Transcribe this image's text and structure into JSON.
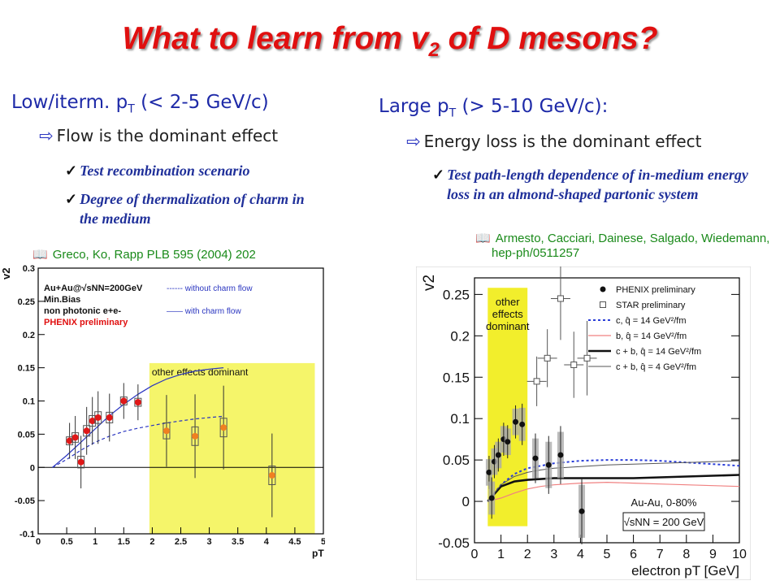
{
  "slide": {
    "title_main": "What to learn from v",
    "title_sub": "2",
    "title_tail": " of D mesons?",
    "left": {
      "header_pre": "Low/iterm. p",
      "header_sub": "T",
      "header_post": " (< 2-5 GeV/c)",
      "bullet": "Flow is the dominant effect",
      "checks": [
        "Test recombination scenario",
        "Degree of thermalization of charm in the medium"
      ],
      "reference": "Greco, Ko, Rapp PLB 595 (2004) 202"
    },
    "right": {
      "header_pre": "Large p",
      "header_sub": "T",
      "header_post": " (> 5-10 GeV/c):",
      "bullet": "Energy loss is the dominant effect",
      "checks": [
        "Test path-length dependence of in-medium energy loss in an almond-shaped partonic system"
      ],
      "reference": "Armesto, Cacciari, Dainese, Salgado, Wiedemann, hep-ph/0511257"
    }
  },
  "chart_data": [
    {
      "type": "scatter",
      "ylabel": "v2",
      "xlabel": "pT",
      "xlim": [
        0,
        5
      ],
      "ylim": [
        -0.1,
        0.3
      ],
      "x_ticks": [
        "0",
        "0.5",
        "1",
        "1.5",
        "2",
        "2.5",
        "3",
        "3.5",
        "4",
        "4.5",
        "5"
      ],
      "y_ticks": [
        "-0.1",
        "-0.05",
        "0",
        "0.05",
        "0.1",
        "0.15",
        "0.2",
        "0.25",
        "0.3"
      ],
      "legend_lines": [
        "Au+Au@√sNN=200GeV",
        "Min.Bias",
        "non photonic e+e-"
      ],
      "legend_phenix": "PHENIX preliminary",
      "curve_labels": [
        "------ without charm flow",
        "—— with charm flow"
      ],
      "band_label": "other effects dominant",
      "band_x": [
        1.95,
        4.85
      ],
      "band_color": "#f5f56a",
      "series": [
        {
          "name": "PHENIX preliminary",
          "x": [
            0.55,
            0.65,
            0.75,
            0.85,
            0.95,
            1.05,
            1.25,
            1.5,
            1.75,
            2.25,
            2.75,
            3.25,
            4.1
          ],
          "y": [
            0.04,
            0.045,
            0.008,
            0.055,
            0.07,
            0.075,
            0.075,
            0.1,
            0.098,
            0.055,
            0.047,
            0.06,
            -0.012
          ],
          "err": [
            0.015,
            0.018,
            0.022,
            0.02,
            0.02,
            0.022,
            0.02,
            0.015,
            0.015,
            0.03,
            0.035,
            0.035,
            0.035
          ]
        }
      ],
      "curves": [
        {
          "name": "with charm flow",
          "style": "solid",
          "x": [
            0.25,
            0.5,
            0.75,
            1.0,
            1.25,
            1.5,
            1.75,
            2.0,
            2.25,
            2.5,
            2.75,
            3.0,
            3.25
          ],
          "y": [
            0,
            0.018,
            0.038,
            0.058,
            0.078,
            0.095,
            0.11,
            0.123,
            0.133,
            0.14,
            0.145,
            0.148,
            0.15
          ]
        },
        {
          "name": "without charm flow",
          "style": "dashed",
          "x": [
            0.25,
            0.5,
            0.75,
            1.0,
            1.25,
            1.5,
            1.75,
            2.0,
            2.25,
            2.5,
            2.75,
            3.0,
            3.25
          ],
          "y": [
            0,
            0.012,
            0.026,
            0.038,
            0.047,
            0.054,
            0.059,
            0.063,
            0.067,
            0.07,
            0.073,
            0.075,
            0.077
          ]
        }
      ]
    },
    {
      "type": "scatter",
      "ylabel": "v2",
      "xlabel": "electron pT [GeV]",
      "xlim": [
        0,
        10
      ],
      "ylim": [
        -0.05,
        0.27
      ],
      "x_ticks": [
        "0",
        "1",
        "2",
        "3",
        "4",
        "5",
        "6",
        "7",
        "8",
        "9",
        "10"
      ],
      "y_ticks": [
        "-0.05",
        "0",
        "0.05",
        "0.1",
        "0.15",
        "0.2",
        "0.25"
      ],
      "band_label": "other effects dominant",
      "band_x": [
        0.5,
        2.0
      ],
      "band_color": "#f2ee2c",
      "legend": [
        "PHENIX preliminary",
        "STAR preliminary",
        "c, q̂ = 14 GeV²/fm",
        "b, q̂ = 14 GeV²/fm",
        "c + b, q̂ = 14 GeV²/fm",
        "c + b, q̂ = 4 GeV²/fm"
      ],
      "annotation_system": "Au-Au, 0-80%",
      "annotation_energy": "√sNN = 200 GeV",
      "series": [
        {
          "name": "PHENIX preliminary",
          "x": [
            0.55,
            0.65,
            0.75,
            0.9,
            1.1,
            1.25,
            1.55,
            1.8,
            2.3,
            2.8,
            3.25,
            4.05
          ],
          "y": [
            0.035,
            0.004,
            0.048,
            0.056,
            0.075,
            0.072,
            0.096,
            0.093,
            0.052,
            0.044,
            0.056,
            -0.012
          ],
          "err": [
            0.02,
            0.025,
            0.02,
            0.02,
            0.02,
            0.02,
            0.02,
            0.025,
            0.03,
            0.035,
            0.035,
            0.04
          ]
        },
        {
          "name": "STAR preliminary",
          "x": [
            2.35,
            2.75,
            3.25,
            3.75,
            4.25
          ],
          "y": [
            0.145,
            0.173,
            0.245,
            0.165,
            0.173
          ],
          "err": [
            0.03,
            0.035,
            0.05,
            0.04,
            0.045
          ]
        }
      ],
      "curves": [
        {
          "name": "c, q̂ = 14 GeV²/fm",
          "color": "#2a3ed8",
          "dash": "3,3",
          "width": 2,
          "x": [
            0.5,
            1,
            1.5,
            2,
            2.5,
            3,
            4,
            5,
            6,
            7,
            8,
            9,
            10
          ],
          "y": [
            0.0,
            0.02,
            0.033,
            0.04,
            0.043,
            0.046,
            0.049,
            0.05,
            0.05,
            0.049,
            0.047,
            0.045,
            0.043
          ]
        },
        {
          "name": "b, q̂ = 14 GeV²/fm",
          "color": "#f08080",
          "dash": "",
          "width": 1.2,
          "x": [
            0.5,
            1,
            1.5,
            2,
            2.5,
            3,
            4,
            5,
            6,
            7,
            8,
            9,
            10
          ],
          "y": [
            0.0,
            0.004,
            0.01,
            0.015,
            0.018,
            0.02,
            0.022,
            0.023,
            0.022,
            0.021,
            0.02,
            0.019,
            0.018
          ]
        },
        {
          "name": "c + b, q̂ = 14 GeV²/fm",
          "color": "#111111",
          "dash": "",
          "width": 2.6,
          "x": [
            0.5,
            1,
            1.5,
            2,
            2.5,
            3,
            4,
            5,
            6,
            7,
            8,
            9,
            10
          ],
          "y": [
            0.0,
            0.018,
            0.024,
            0.026,
            0.027,
            0.028,
            0.028,
            0.028,
            0.028,
            0.029,
            0.03,
            0.031,
            0.032
          ]
        },
        {
          "name": "c + b, q̂ = 4 GeV²/fm",
          "color": "#555555",
          "dash": "",
          "width": 1,
          "x": [
            0.5,
            1,
            1.5,
            2,
            2.5,
            3,
            4,
            5,
            6,
            7,
            8,
            9,
            10
          ],
          "y": [
            0.0,
            0.02,
            0.03,
            0.035,
            0.038,
            0.04,
            0.042,
            0.044,
            0.045,
            0.046,
            0.047,
            0.048,
            0.049
          ]
        }
      ]
    }
  ]
}
